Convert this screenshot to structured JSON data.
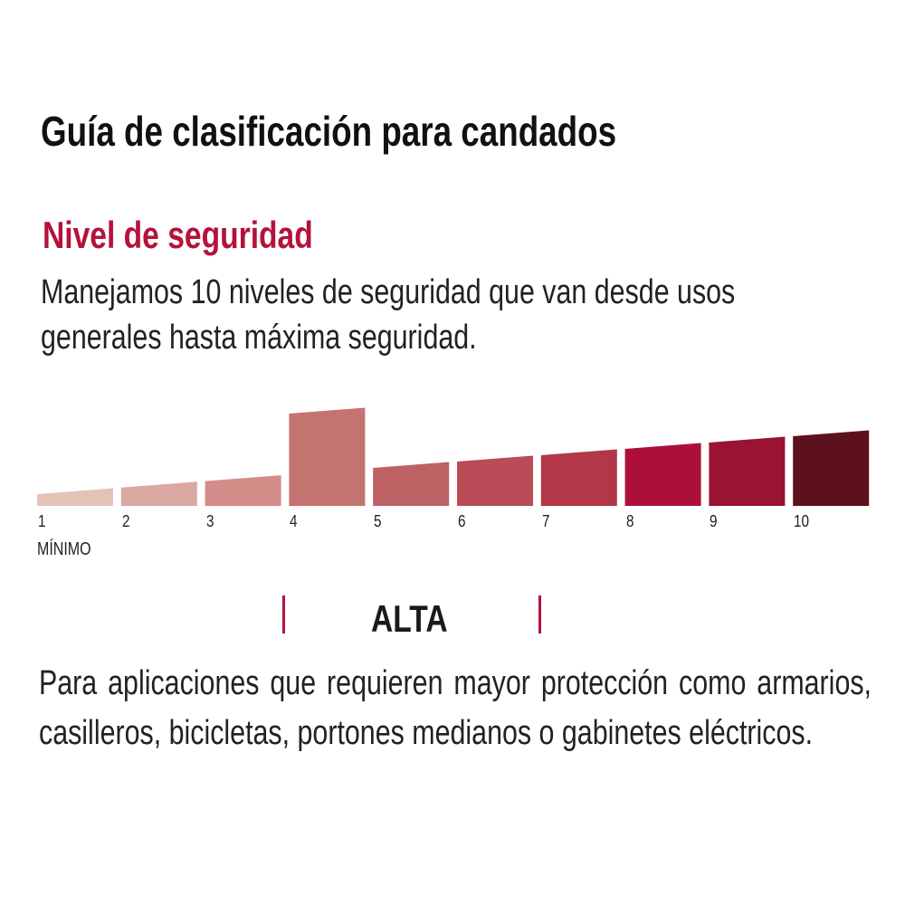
{
  "title": "Guía de clasificación para candados",
  "subtitle": "Nivel de seguridad",
  "intro_lines": [
    "Manejamos 10 niveles de seguridad que van desde usos",
    "generales hasta máxima seguridad."
  ],
  "scale": {
    "levels": [
      "1",
      "2",
      "3",
      "4",
      "5",
      "6",
      "7",
      "8",
      "9",
      "10"
    ],
    "colors": [
      "#e3c3b8",
      "#dba8a3",
      "#d28d88",
      "#c57370",
      "#bd6165",
      "#b94c57",
      "#b23748",
      "#ad0f3b",
      "#9a1332",
      "#5d111d"
    ],
    "highlighted_level": 4,
    "min_label": "MÍNIMO"
  },
  "category": {
    "name": "ALTA",
    "accent_color": "#b5123b",
    "description": "Para aplicaciones que requieren mayor protección como armarios, casilleros, bicicletas, portones medianos o gabinetes eléctricos."
  }
}
